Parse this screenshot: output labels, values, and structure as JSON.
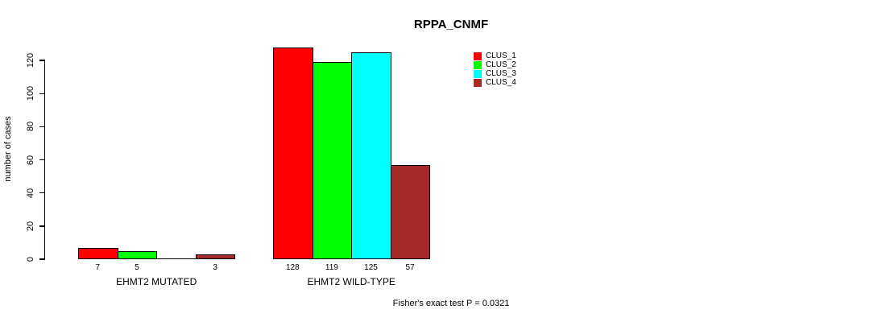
{
  "chart_data": {
    "type": "bar",
    "title": "RPPA_CNMF",
    "ylabel": "number of cases",
    "ylim": [
      0,
      120
    ],
    "yticks": [
      0,
      20,
      40,
      60,
      80,
      100,
      120
    ],
    "grid": false,
    "legend_position": "top-right",
    "categories": [
      "EHMT2 MUTATED",
      "EHMT2 WILD-TYPE"
    ],
    "series": [
      {
        "name": "CLUS_1",
        "color": "#FF0000",
        "values": [
          7,
          128
        ]
      },
      {
        "name": "CLUS_2",
        "color": "#00FF00",
        "values": [
          5,
          119
        ]
      },
      {
        "name": "CLUS_3",
        "color": "#00FFFF",
        "values": [
          0,
          125
        ]
      },
      {
        "name": "CLUS_4",
        "color": "#A52A2A",
        "values": [
          3,
          57
        ]
      }
    ],
    "bar_value_labels": [
      [
        "7",
        "5",
        "",
        "3"
      ],
      [
        "128",
        "119",
        "125",
        "57"
      ]
    ],
    "annotation": "Fisher's exact test P = 0.0321"
  }
}
